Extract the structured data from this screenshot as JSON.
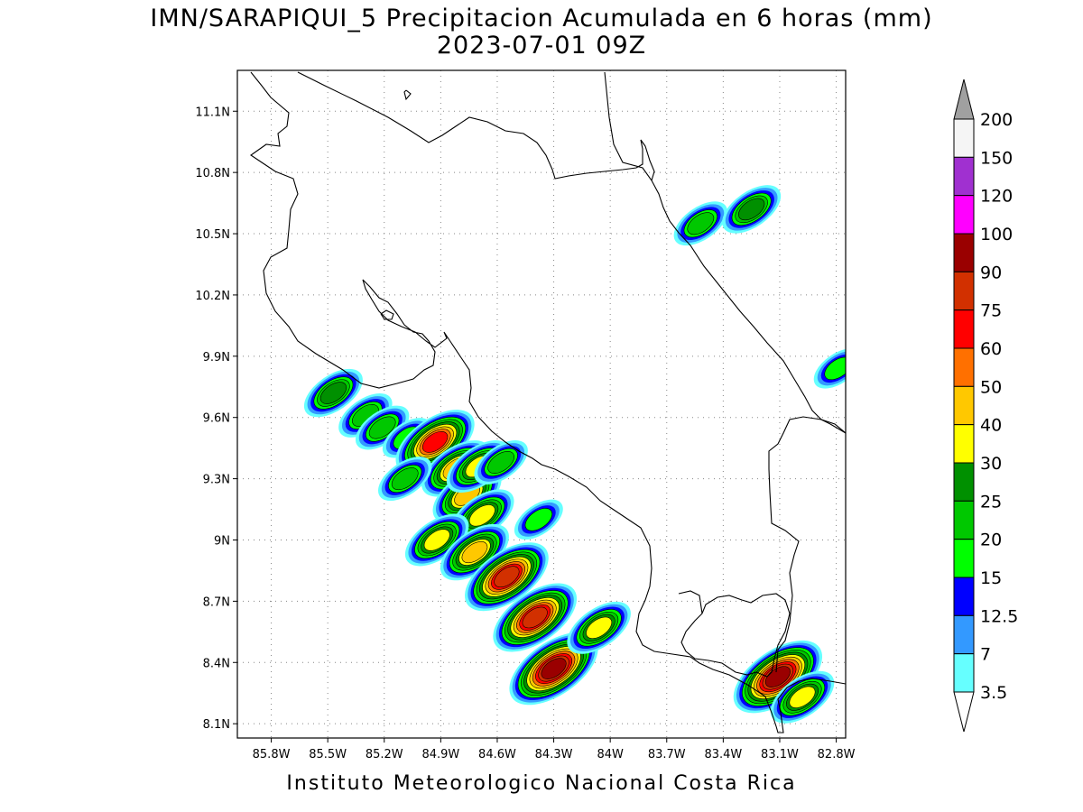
{
  "title": {
    "line1": "IMN/SARAPIQUI_5 Precipitacion Acumulada en 6 horas (mm)",
    "line2": "2023-07-01 09Z"
  },
  "footer": "Instituto Meteorologico Nacional Costa Rica",
  "map": {
    "lon_range": [
      -85.98,
      -82.75
    ],
    "lat_range": [
      8.03,
      11.3
    ],
    "lon_ticks": [
      "85.8W",
      "85.5W",
      "85.2W",
      "84.9W",
      "84.6W",
      "84.3W",
      "84W",
      "83.7W",
      "83.4W",
      "83.1W",
      "82.8W"
    ],
    "lat_ticks": [
      "11.1N",
      "10.8N",
      "10.5N",
      "10.2N",
      "9.9N",
      "9.6N",
      "9.3N",
      "9N",
      "8.7N",
      "8.4N",
      "8.1N"
    ],
    "gridlines": "dotted"
  },
  "colorbar": {
    "labels": [
      "200",
      "150",
      "120",
      "100",
      "90",
      "75",
      "60",
      "50",
      "40",
      "30",
      "25",
      "20",
      "15",
      "12.5",
      "7",
      "3.5"
    ],
    "colors": [
      "#a0a0a0",
      "#f5f5f5",
      "#a030d0",
      "#ff00ff",
      "#9a0000",
      "#d23000",
      "#ff0000",
      "#ff7000",
      "#ffc800",
      "#ffff00",
      "#009000",
      "#00c800",
      "#00ff00",
      "#0000ff",
      "#3399ff",
      "#66ffff",
      "#ffffff"
    ]
  },
  "precipitation_cells": [
    {
      "lon": -85.47,
      "lat": 9.72,
      "peak": 25
    },
    {
      "lon": -85.3,
      "lat": 9.61,
      "peak": 20
    },
    {
      "lon": -85.21,
      "lat": 9.55,
      "peak": 20
    },
    {
      "lon": -85.08,
      "lat": 9.5,
      "peak": 15
    },
    {
      "lon": -84.93,
      "lat": 9.48,
      "peak": 60
    },
    {
      "lon": -84.82,
      "lat": 9.35,
      "peak": 40
    },
    {
      "lon": -84.76,
      "lat": 9.22,
      "peak": 40
    },
    {
      "lon": -84.7,
      "lat": 9.36,
      "peak": 30
    },
    {
      "lon": -84.68,
      "lat": 9.12,
      "peak": 30
    },
    {
      "lon": -84.92,
      "lat": 9.0,
      "peak": 30
    },
    {
      "lon": -84.72,
      "lat": 8.94,
      "peak": 40
    },
    {
      "lon": -84.55,
      "lat": 8.82,
      "peak": 75
    },
    {
      "lon": -84.4,
      "lat": 8.62,
      "peak": 75
    },
    {
      "lon": -84.3,
      "lat": 8.37,
      "peak": 90
    },
    {
      "lon": -84.06,
      "lat": 8.57,
      "peak": 30
    },
    {
      "lon": -83.11,
      "lat": 8.33,
      "peak": 90
    },
    {
      "lon": -82.98,
      "lat": 8.23,
      "peak": 30
    },
    {
      "lon": -83.52,
      "lat": 10.55,
      "peak": 20
    },
    {
      "lon": -83.25,
      "lat": 10.62,
      "peak": 25
    },
    {
      "lon": -82.79,
      "lat": 9.84,
      "peak": 15
    },
    {
      "lon": -84.58,
      "lat": 9.38,
      "peak": 20
    },
    {
      "lon": -84.38,
      "lat": 9.1,
      "peak": 15
    },
    {
      "lon": -85.09,
      "lat": 9.3,
      "peak": 20
    }
  ]
}
